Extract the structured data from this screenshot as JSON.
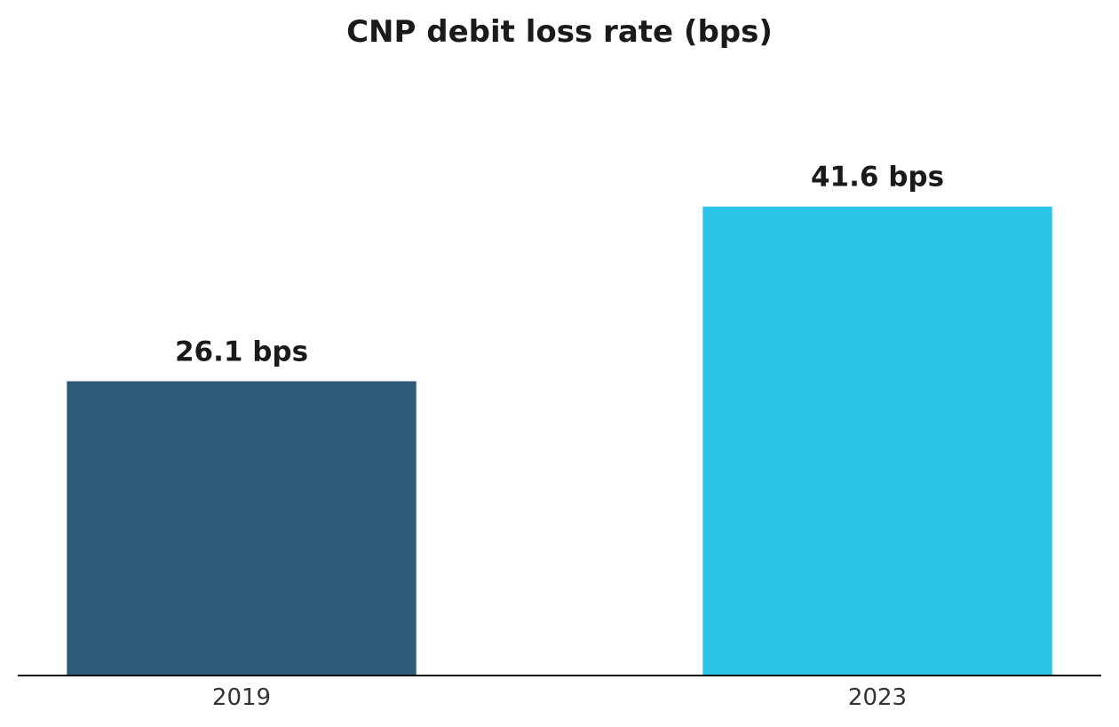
{
  "chart_data": {
    "type": "bar",
    "title": "CNP debit loss rate (bps)",
    "xlabel": "",
    "ylabel": "",
    "categories": [
      "2019",
      "2023"
    ],
    "values": [
      26.1,
      41.6
    ],
    "value_labels": [
      "26.1 bps",
      "41.6 bps"
    ],
    "colors": [
      "#2e5a78",
      "#29c4e6"
    ],
    "ylim": [
      0,
      48
    ],
    "grid": false,
    "legend": "none",
    "y_axis_visible": false
  }
}
